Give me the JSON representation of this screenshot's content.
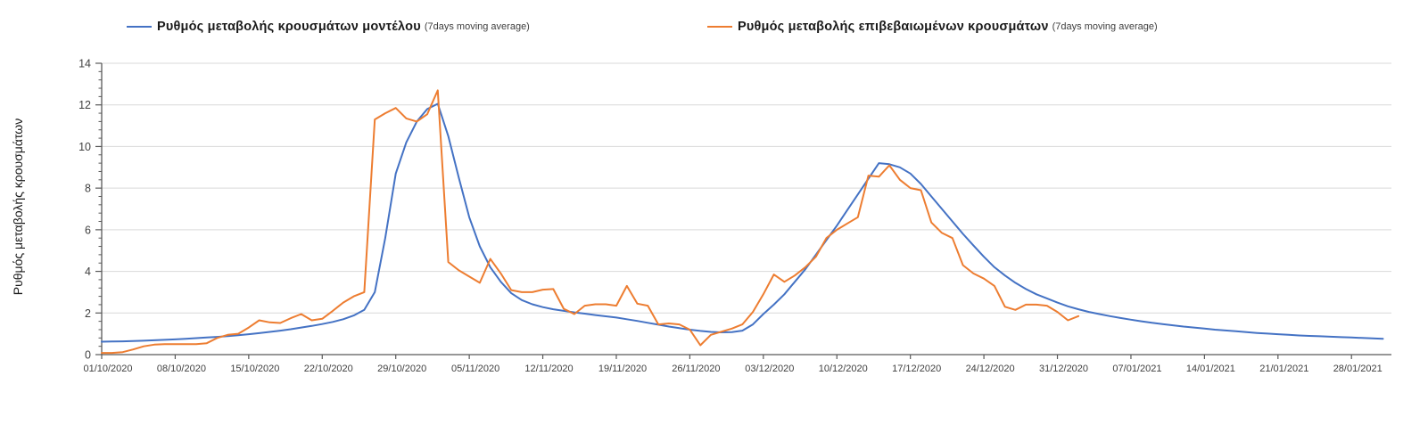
{
  "colors": {
    "model_line": "#4472C4",
    "confirmed_line": "#ED7D31",
    "axis": "#595959",
    "grid": "#D9D9D9",
    "tick_label": "#404040"
  },
  "legend": {
    "items": [
      {
        "label": "Ρυθμός μεταβολής κρουσμάτων μοντέλου",
        "sublabel": "(7days moving average)",
        "color": "#4472C4"
      },
      {
        "label": "Ρυθμός μεταβολής επιβεβαιωμένων κρουσμάτων",
        "sublabel": "(7days moving average)",
        "color": "#ED7D31"
      }
    ]
  },
  "y_axis": {
    "title": "Ρυθμός μεταβολής κρουσμάτων"
  },
  "chart_data": {
    "type": "line",
    "title": "",
    "xlabel": "",
    "ylabel": "Ρυθμός μεταβολής κρουσμάτων",
    "ylim": [
      0,
      14
    ],
    "y_major_ticks": [
      0,
      2,
      4,
      6,
      8,
      10,
      12,
      14
    ],
    "y_minor_tick_step": 0.4,
    "grid": "horizontal",
    "legend_position": "top",
    "x_start_date": "01/10/2020",
    "x_unit": "days",
    "x_tick_interval_days": 7,
    "x_tick_labels": [
      "01/10/2020",
      "08/10/2020",
      "15/10/2020",
      "22/10/2020",
      "29/10/2020",
      "05/11/2020",
      "12/11/2020",
      "19/11/2020",
      "26/11/2020",
      "03/12/2020",
      "10/12/2020",
      "17/12/2020",
      "24/12/2020",
      "31/12/2020",
      "07/01/2021",
      "14/01/2021",
      "21/01/2021",
      "28/01/2021"
    ],
    "series": [
      {
        "name": "Ρυθμός μεταβολής κρουσμάτων μοντέλου (7days moving average)",
        "color": "#4472C4",
        "start_day": 0,
        "values": [
          0.62,
          0.63,
          0.64,
          0.65,
          0.67,
          0.69,
          0.71,
          0.73,
          0.76,
          0.79,
          0.82,
          0.85,
          0.89,
          0.93,
          0.98,
          1.03,
          1.09,
          1.15,
          1.22,
          1.3,
          1.38,
          1.47,
          1.57,
          1.7,
          1.88,
          2.15,
          3.0,
          5.6,
          8.7,
          10.2,
          11.2,
          11.8,
          12.05,
          10.5,
          8.5,
          6.6,
          5.2,
          4.2,
          3.5,
          2.95,
          2.62,
          2.42,
          2.28,
          2.18,
          2.1,
          2.03,
          1.97,
          1.9,
          1.84,
          1.78,
          1.7,
          1.62,
          1.53,
          1.44,
          1.35,
          1.27,
          1.2,
          1.14,
          1.09,
          1.07,
          1.08,
          1.15,
          1.45,
          1.95,
          2.4,
          2.9,
          3.5,
          4.1,
          4.8,
          5.5,
          6.2,
          6.95,
          7.7,
          8.45,
          9.2,
          9.15,
          9.0,
          8.7,
          8.2,
          7.6,
          7.0,
          6.4,
          5.8,
          5.25,
          4.7,
          4.2,
          3.8,
          3.45,
          3.15,
          2.9,
          2.7,
          2.5,
          2.32,
          2.18,
          2.05,
          1.95,
          1.85,
          1.76,
          1.68,
          1.6,
          1.53,
          1.47,
          1.41,
          1.35,
          1.3,
          1.25,
          1.2,
          1.16,
          1.12,
          1.08,
          1.04,
          1.01,
          0.98,
          0.95,
          0.92,
          0.9,
          0.88,
          0.86,
          0.84,
          0.82,
          0.8,
          0.78,
          0.76
        ]
      },
      {
        "name": "Ρυθμός μεταβολής επιβεβαιωμένων κρουσμάτων (7days moving average)",
        "color": "#ED7D31",
        "start_day": 0,
        "values": [
          0.08,
          0.08,
          0.12,
          0.25,
          0.4,
          0.48,
          0.5,
          0.5,
          0.5,
          0.5,
          0.55,
          0.8,
          0.95,
          1.0,
          1.3,
          1.65,
          1.55,
          1.52,
          1.75,
          1.95,
          1.65,
          1.72,
          2.1,
          2.5,
          2.8,
          3.0,
          11.3,
          11.6,
          11.85,
          11.35,
          11.2,
          11.55,
          12.7,
          4.45,
          4.05,
          3.75,
          3.45,
          4.6,
          3.9,
          3.1,
          3.0,
          3.0,
          3.12,
          3.15,
          2.2,
          1.95,
          2.35,
          2.42,
          2.42,
          2.35,
          3.3,
          2.45,
          2.35,
          1.45,
          1.5,
          1.45,
          1.2,
          0.45,
          0.95,
          1.1,
          1.25,
          1.45,
          2.05,
          2.9,
          3.85,
          3.5,
          3.8,
          4.2,
          4.7,
          5.6,
          6.0,
          6.3,
          6.6,
          8.6,
          8.55,
          9.1,
          8.4,
          8.0,
          7.9,
          6.35,
          5.85,
          5.6,
          4.3,
          3.9,
          3.65,
          3.3,
          2.3,
          2.15,
          2.4,
          2.4,
          2.35,
          2.05,
          1.65,
          1.85
        ]
      }
    ]
  }
}
